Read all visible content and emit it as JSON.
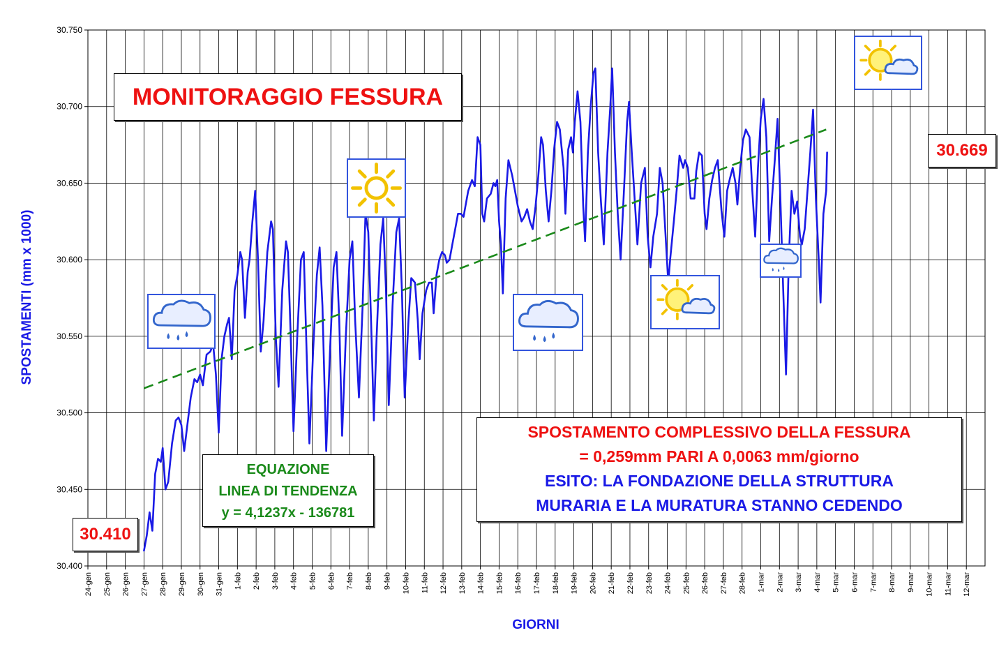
{
  "chart_data": {
    "type": "line",
    "title": "MONITORAGGIO FESSURA",
    "xlabel": "GIORNI",
    "ylabel": "SPOSTAMENTI (mm x 1000)",
    "ylim": [
      30.4,
      30.75
    ],
    "yticks": [
      "30.400",
      "30.450",
      "30.500",
      "30.550",
      "30.600",
      "30.650",
      "30.700",
      "30.750"
    ],
    "categories": [
      "24-gen",
      "25-gen",
      "26-gen",
      "27-gen",
      "28-gen",
      "29-gen",
      "30-gen",
      "31-gen",
      "1-feb",
      "2-feb",
      "3-feb",
      "4-feb",
      "5-feb",
      "6-feb",
      "7-feb",
      "8-feb",
      "9-feb",
      "10-feb",
      "11-feb",
      "12-feb",
      "13-feb",
      "14-feb",
      "15-feb",
      "16-feb",
      "17-feb",
      "18-feb",
      "19-feb",
      "20-feb",
      "21-feb",
      "22-feb",
      "23-feb",
      "24-feb",
      "25-feb",
      "26-feb",
      "27-feb",
      "28-feb",
      "1-mar",
      "2-mar",
      "3-mar",
      "4-mar",
      "5-mar",
      "6-mar",
      "7-mar",
      "8-mar",
      "9-mar",
      "10-mar",
      "11-mar",
      "12-mar"
    ],
    "grid": true,
    "series": [
      {
        "color": "#1a1ae6",
        "points": [
          [
            3.0,
            30.41
          ],
          [
            3.15,
            30.42
          ],
          [
            3.3,
            30.435
          ],
          [
            3.45,
            30.423
          ],
          [
            3.6,
            30.46
          ],
          [
            3.75,
            30.47
          ],
          [
            3.9,
            30.468
          ],
          [
            4.0,
            30.477
          ],
          [
            4.15,
            30.45
          ],
          [
            4.3,
            30.455
          ],
          [
            4.5,
            30.48
          ],
          [
            4.7,
            30.495
          ],
          [
            4.85,
            30.497
          ],
          [
            5.0,
            30.492
          ],
          [
            5.15,
            30.475
          ],
          [
            5.3,
            30.49
          ],
          [
            5.5,
            30.51
          ],
          [
            5.7,
            30.522
          ],
          [
            5.85,
            30.52
          ],
          [
            6.0,
            30.525
          ],
          [
            6.15,
            30.518
          ],
          [
            6.35,
            30.538
          ],
          [
            6.55,
            30.54
          ],
          [
            6.7,
            30.545
          ],
          [
            6.85,
            30.525
          ],
          [
            7.0,
            30.487
          ],
          [
            7.15,
            30.535
          ],
          [
            7.3,
            30.55
          ],
          [
            7.45,
            30.558
          ],
          [
            7.55,
            30.562
          ],
          [
            7.7,
            30.535
          ],
          [
            7.85,
            30.58
          ],
          [
            8.0,
            30.59
          ],
          [
            8.15,
            30.605
          ],
          [
            8.25,
            30.6
          ],
          [
            8.4,
            30.562
          ],
          [
            8.55,
            30.592
          ],
          [
            8.65,
            30.6
          ],
          [
            8.8,
            30.625
          ],
          [
            8.95,
            30.645
          ],
          [
            9.1,
            30.6
          ],
          [
            9.25,
            30.54
          ],
          [
            9.4,
            30.56
          ],
          [
            9.6,
            30.605
          ],
          [
            9.8,
            30.625
          ],
          [
            9.9,
            30.62
          ],
          [
            10.05,
            30.55
          ],
          [
            10.2,
            30.517
          ],
          [
            10.4,
            30.58
          ],
          [
            10.6,
            30.612
          ],
          [
            10.7,
            30.605
          ],
          [
            10.85,
            30.55
          ],
          [
            11.0,
            30.488
          ],
          [
            11.2,
            30.55
          ],
          [
            11.4,
            30.6
          ],
          [
            11.55,
            30.605
          ],
          [
            11.7,
            30.54
          ],
          [
            11.85,
            30.48
          ],
          [
            12.05,
            30.54
          ],
          [
            12.25,
            30.59
          ],
          [
            12.4,
            30.608
          ],
          [
            12.55,
            30.57
          ],
          [
            12.75,
            30.475
          ],
          [
            12.95,
            30.54
          ],
          [
            13.15,
            30.595
          ],
          [
            13.3,
            30.605
          ],
          [
            13.45,
            30.56
          ],
          [
            13.6,
            30.485
          ],
          [
            13.8,
            30.55
          ],
          [
            14.0,
            30.6
          ],
          [
            14.15,
            30.612
          ],
          [
            14.3,
            30.56
          ],
          [
            14.5,
            30.51
          ],
          [
            14.7,
            30.57
          ],
          [
            14.85,
            30.63
          ],
          [
            15.0,
            30.618
          ],
          [
            15.15,
            30.56
          ],
          [
            15.3,
            30.495
          ],
          [
            15.45,
            30.55
          ],
          [
            15.65,
            30.61
          ],
          [
            15.8,
            30.627
          ],
          [
            15.95,
            30.58
          ],
          [
            16.1,
            30.505
          ],
          [
            16.3,
            30.57
          ],
          [
            16.5,
            30.618
          ],
          [
            16.65,
            30.627
          ],
          [
            16.8,
            30.58
          ],
          [
            16.95,
            30.51
          ],
          [
            17.15,
            30.56
          ],
          [
            17.3,
            30.588
          ],
          [
            17.5,
            30.585
          ],
          [
            17.65,
            30.56
          ],
          [
            17.75,
            30.535
          ],
          [
            17.9,
            30.565
          ],
          [
            18.1,
            30.58
          ],
          [
            18.25,
            30.585
          ],
          [
            18.4,
            30.585
          ],
          [
            18.5,
            30.565
          ],
          [
            18.65,
            30.59
          ],
          [
            18.8,
            30.6
          ],
          [
            18.95,
            30.605
          ],
          [
            19.1,
            30.603
          ],
          [
            19.2,
            30.598
          ],
          [
            19.35,
            30.6
          ],
          [
            19.5,
            30.61
          ],
          [
            19.65,
            30.62
          ],
          [
            19.8,
            30.63
          ],
          [
            19.95,
            30.63
          ],
          [
            20.1,
            30.628
          ],
          [
            20.2,
            30.635
          ],
          [
            20.35,
            30.645
          ],
          [
            20.55,
            30.652
          ],
          [
            20.7,
            30.648
          ],
          [
            20.85,
            30.68
          ],
          [
            21.0,
            30.675
          ],
          [
            21.1,
            30.63
          ],
          [
            21.2,
            30.625
          ],
          [
            21.35,
            30.64
          ],
          [
            21.55,
            30.643
          ],
          [
            21.7,
            30.65
          ],
          [
            21.8,
            30.648
          ],
          [
            21.9,
            30.652
          ],
          [
            22.0,
            30.625
          ],
          [
            22.1,
            30.61
          ],
          [
            22.2,
            30.578
          ],
          [
            22.35,
            30.64
          ],
          [
            22.5,
            30.665
          ],
          [
            22.7,
            30.655
          ],
          [
            22.85,
            30.645
          ],
          [
            23.0,
            30.635
          ],
          [
            23.2,
            30.625
          ],
          [
            23.35,
            30.628
          ],
          [
            23.5,
            30.633
          ],
          [
            23.65,
            30.625
          ],
          [
            23.8,
            30.62
          ],
          [
            23.95,
            30.635
          ],
          [
            24.1,
            30.655
          ],
          [
            24.25,
            30.68
          ],
          [
            24.35,
            30.675
          ],
          [
            24.5,
            30.645
          ],
          [
            24.65,
            30.625
          ],
          [
            24.8,
            30.645
          ],
          [
            24.95,
            30.673
          ],
          [
            25.1,
            30.69
          ],
          [
            25.25,
            30.685
          ],
          [
            25.45,
            30.66
          ],
          [
            25.55,
            30.63
          ],
          [
            25.7,
            30.672
          ],
          [
            25.85,
            30.68
          ],
          [
            25.95,
            30.67
          ],
          [
            26.05,
            30.69
          ],
          [
            26.2,
            30.71
          ],
          [
            26.35,
            30.69
          ],
          [
            26.5,
            30.635
          ],
          [
            26.6,
            30.612
          ],
          [
            26.75,
            30.67
          ],
          [
            26.9,
            30.7
          ],
          [
            27.05,
            30.722
          ],
          [
            27.15,
            30.725
          ],
          [
            27.3,
            30.67
          ],
          [
            27.45,
            30.638
          ],
          [
            27.6,
            30.61
          ],
          [
            27.8,
            30.67
          ],
          [
            27.95,
            30.7
          ],
          [
            28.05,
            30.725
          ],
          [
            28.2,
            30.67
          ],
          [
            28.35,
            30.63
          ],
          [
            28.5,
            30.6
          ],
          [
            28.7,
            30.65
          ],
          [
            28.85,
            30.69
          ],
          [
            28.95,
            30.703
          ],
          [
            29.1,
            30.67
          ],
          [
            29.25,
            30.64
          ],
          [
            29.4,
            30.61
          ],
          [
            29.6,
            30.65
          ],
          [
            29.8,
            30.66
          ],
          [
            29.95,
            30.615
          ],
          [
            30.1,
            30.595
          ],
          [
            30.25,
            30.615
          ],
          [
            30.45,
            30.63
          ],
          [
            30.6,
            30.66
          ],
          [
            30.75,
            30.65
          ],
          [
            30.9,
            30.617
          ],
          [
            31.05,
            30.585
          ],
          [
            31.15,
            30.6
          ],
          [
            31.35,
            30.625
          ],
          [
            31.5,
            30.645
          ],
          [
            31.65,
            30.668
          ],
          [
            31.85,
            30.66
          ],
          [
            31.95,
            30.665
          ],
          [
            32.1,
            30.66
          ],
          [
            32.25,
            30.64
          ],
          [
            32.45,
            30.64
          ],
          [
            32.55,
            30.658
          ],
          [
            32.7,
            30.67
          ],
          [
            32.85,
            30.668
          ],
          [
            33.0,
            30.63
          ],
          [
            33.1,
            30.62
          ],
          [
            33.25,
            30.64
          ],
          [
            33.4,
            30.652
          ],
          [
            33.55,
            30.66
          ],
          [
            33.7,
            30.665
          ],
          [
            33.9,
            30.632
          ],
          [
            34.05,
            30.615
          ],
          [
            34.2,
            30.645
          ],
          [
            34.35,
            30.653
          ],
          [
            34.5,
            30.66
          ],
          [
            34.65,
            30.65
          ],
          [
            34.75,
            30.636
          ],
          [
            34.9,
            30.66
          ],
          [
            35.05,
            30.678
          ],
          [
            35.2,
            30.685
          ],
          [
            35.4,
            30.68
          ],
          [
            35.55,
            30.645
          ],
          [
            35.7,
            30.615
          ],
          [
            35.85,
            30.66
          ],
          [
            36.0,
            30.692
          ],
          [
            36.15,
            30.705
          ],
          [
            36.3,
            30.68
          ],
          [
            36.45,
            30.612
          ],
          [
            36.6,
            30.64
          ],
          [
            36.75,
            30.665
          ],
          [
            36.9,
            30.692
          ],
          [
            37.05,
            30.64
          ],
          [
            37.2,
            30.58
          ],
          [
            37.35,
            30.525
          ],
          [
            37.5,
            30.6
          ],
          [
            37.65,
            30.645
          ],
          [
            37.8,
            30.63
          ],
          [
            37.95,
            30.638
          ],
          [
            38.1,
            30.615
          ],
          [
            38.2,
            30.61
          ],
          [
            38.35,
            30.62
          ],
          [
            38.5,
            30.645
          ],
          [
            38.65,
            30.67
          ],
          [
            38.8,
            30.698
          ],
          [
            38.95,
            30.64
          ],
          [
            39.1,
            30.6
          ],
          [
            39.2,
            30.572
          ],
          [
            39.35,
            30.63
          ],
          [
            39.5,
            30.645
          ],
          [
            39.55,
            30.67
          ]
        ]
      },
      {
        "name": "trend",
        "color": "#1a8a1a",
        "points": [
          [
            3.0,
            30.516
          ],
          [
            39.5,
            30.685
          ]
        ]
      }
    ],
    "annotations": {
      "start_value": "30.410",
      "end_value": "30.669",
      "equation_lines": [
        "EQUAZIONE",
        "LINEA DI TENDENZA",
        "y = 4,1237x - 136781"
      ],
      "result_lines": [
        "SPOSTAMENTO COMPLESSIVO DELLA FESSURA",
        "= 0,259mm PARI A 0,0063 mm/giorno",
        "ESITO: LA FONDAZIONE DELLA STRUTTURA",
        "MURARIA E LA MURATURA STANNO CEDENDO"
      ]
    },
    "weather_icons": [
      "rain-cloud-icon",
      "sun-icon",
      "rain-cloud-icon",
      "sun-cloud-icon",
      "rain-cloud-icon",
      "sun-cloud-icon"
    ]
  }
}
